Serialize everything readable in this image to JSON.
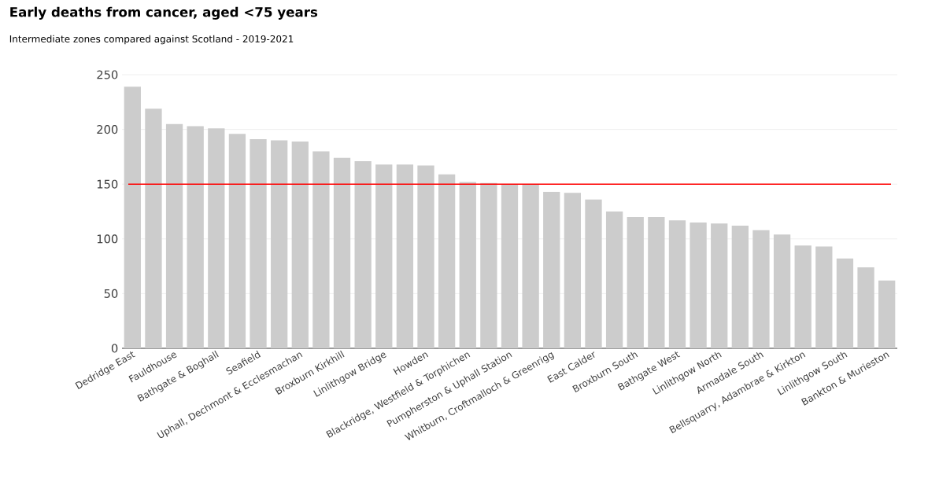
{
  "chart_data": {
    "type": "bar",
    "title": "Early deaths from cancer, aged <75 years",
    "subtitle": "Intermediate zones compared against Scotland - 2019-2021",
    "categories": [
      "Dedridge East",
      null,
      "Fauldhouse",
      null,
      "Bathgate & Boghall",
      null,
      "Seafield",
      null,
      "Uphall, Dechmont & Ecclesmachan",
      null,
      "Broxburn Kirkhill",
      null,
      "Linlithgow Bridge",
      null,
      "Howden",
      null,
      "Blackridge, Westfield & Torphichen",
      null,
      "Pumpherston & Uphall Station",
      null,
      "Whitburn, Croftmalloch & Greenrigg",
      null,
      "East Calder",
      null,
      "Broxburn South",
      null,
      "Bathgate West",
      null,
      "Linlithgow North",
      null,
      "Armadale South",
      null,
      "Bellsquarry, Adambrae & Kirkton",
      null,
      "Linlithgow South",
      null,
      "Bankton & Murieston"
    ],
    "values": [
      239,
      219,
      205,
      203,
      201,
      196,
      191,
      190,
      189,
      180,
      174,
      171,
      168,
      168,
      167,
      159,
      152,
      151,
      150,
      150,
      143,
      142,
      136,
      125,
      120,
      120,
      117,
      115,
      114,
      112,
      108,
      104,
      94,
      93,
      82,
      74,
      62
    ],
    "color": "#cccccc",
    "ylim": [
      0,
      250
    ],
    "yticks": [
      0,
      50,
      100,
      150,
      200,
      250
    ],
    "grid": "y",
    "ref_lines": [
      {
        "axis": "y",
        "value": 150,
        "color": "#ff0000"
      }
    ]
  }
}
